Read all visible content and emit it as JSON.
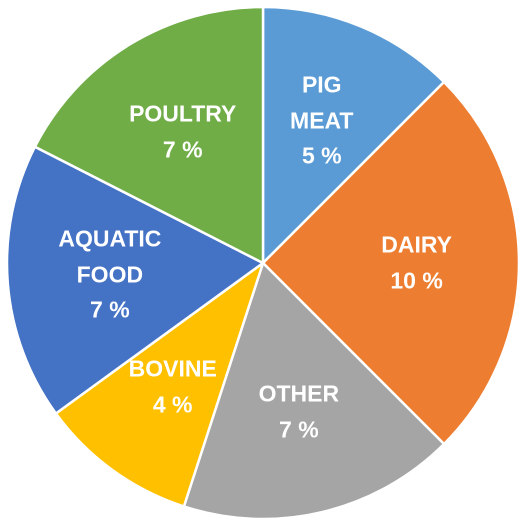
{
  "chart_data": {
    "type": "pie",
    "categories": [
      "PIG MEAT",
      "DAIRY",
      "OTHER",
      "BOVINE",
      "AQUATIC FOOD",
      "POULTRY"
    ],
    "values": [
      5,
      10,
      7,
      4,
      7,
      7
    ],
    "value_labels": [
      "5 %",
      "10 %",
      "7 %",
      "4 %",
      "7 %",
      "7 %"
    ],
    "colors": [
      "#5b9bd5",
      "#ed7d31",
      "#a5a5a5",
      "#ffc000",
      "#4472c4",
      "#70ad47"
    ]
  }
}
